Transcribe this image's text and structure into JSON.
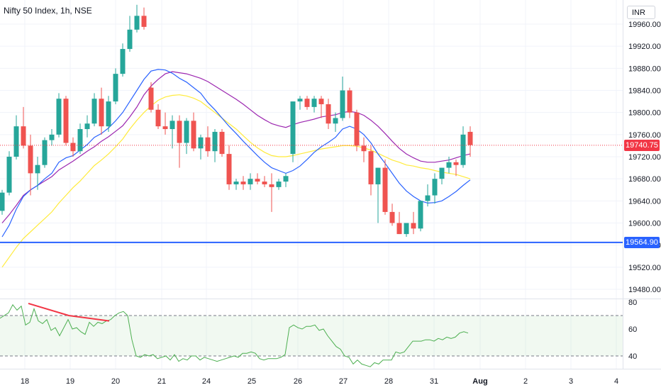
{
  "header": {
    "title": "Nifty 50 Index, 1h, NSE"
  },
  "currency": "INR",
  "price_labels": {
    "last": "19740.75",
    "line": "19564.90"
  },
  "colors": {
    "up": "#26a69a",
    "down": "#ef5350",
    "ema_blue": "#2962ff",
    "ema_purple": "#9c27b0",
    "ema_yellow": "#ffeb3b",
    "hline": "#2962ff",
    "rsi": "#4caf50",
    "rsi_div": "#f23645",
    "last": "#f23645"
  },
  "chart_data": [
    {
      "type": "candlestick",
      "title": "Nifty 50 Index, 1h, NSE",
      "y_ticks": [
        19480,
        19520,
        19560,
        19600,
        19640,
        19680,
        19720,
        19760,
        19800,
        19840,
        19880,
        19920,
        19960
      ],
      "y_tick_labels": [
        "19480.00",
        "19520.00",
        "19560.00",
        "19600.00",
        "19640.00",
        "19680.00",
        "19720.00",
        "19760.00",
        "19800.00",
        "19840.00",
        "19880.00",
        "19920.00",
        "19960.00"
      ],
      "ylim": [
        19458,
        19992
      ],
      "x_labels": [
        "18",
        "19",
        "20",
        "21",
        "24",
        "25",
        "26",
        "27",
        "28",
        "31",
        "Aug",
        "2",
        "3",
        "4"
      ],
      "horizontal_line": 19564.9,
      "last_price": 19740.75,
      "candles": [
        [
          19622,
          19660,
          19615,
          19655
        ],
        [
          19655,
          19730,
          19650,
          19720
        ],
        [
          19720,
          19795,
          19715,
          19775
        ],
        [
          19775,
          19810,
          19735,
          19740
        ],
        [
          19740,
          19760,
          19650,
          19690
        ],
        [
          19690,
          19720,
          19660,
          19705
        ],
        [
          19705,
          19755,
          19700,
          19750
        ],
        [
          19750,
          19770,
          19740,
          19760
        ],
        [
          19760,
          19835,
          19755,
          19825
        ],
        [
          19825,
          19830,
          19740,
          19745
        ],
        [
          19745,
          19755,
          19720,
          19730
        ],
        [
          19730,
          19780,
          19725,
          19770
        ],
        [
          19770,
          19795,
          19755,
          19780
        ],
        [
          19780,
          19835,
          19775,
          19825
        ],
        [
          19825,
          19845,
          19760,
          19775
        ],
        [
          19775,
          19830,
          19765,
          19820
        ],
        [
          19820,
          19880,
          19815,
          19870
        ],
        [
          19870,
          19925,
          19865,
          19915
        ],
        [
          19915,
          19975,
          19910,
          19950
        ],
        [
          19950,
          19995,
          19945,
          19975
        ],
        [
          19975,
          19990,
          19950,
          19955
        ],
        [
          19845,
          19855,
          19800,
          19805
        ],
        [
          19805,
          19815,
          19770,
          19775
        ],
        [
          19775,
          19800,
          19760,
          19770
        ],
        [
          19770,
          19795,
          19735,
          19785
        ],
        [
          19785,
          19795,
          19700,
          19745
        ],
        [
          19745,
          19790,
          19725,
          19785
        ],
        [
          19785,
          19800,
          19730,
          19735
        ],
        [
          19735,
          19760,
          19715,
          19755
        ],
        [
          19755,
          19775,
          19720,
          19730
        ],
        [
          19730,
          19770,
          19710,
          19765
        ],
        [
          19765,
          19770,
          19720,
          19725
        ],
        [
          19725,
          19740,
          19660,
          19670
        ],
        [
          19670,
          19680,
          19660,
          19675
        ],
        [
          19675,
          19685,
          19660,
          19670
        ],
        [
          19670,
          19690,
          19660,
          19680
        ],
        [
          19680,
          19690,
          19670,
          19675
        ],
        [
          19675,
          19685,
          19665,
          19670
        ],
        [
          19670,
          19690,
          19620,
          19665
        ],
        [
          19665,
          19680,
          19660,
          19675
        ],
        [
          19675,
          19690,
          19665,
          19685
        ],
        [
          19725,
          19820,
          19710,
          19820
        ],
        [
          19820,
          19830,
          19805,
          19825
        ],
        [
          19825,
          19830,
          19805,
          19810
        ],
        [
          19810,
          19830,
          19800,
          19825
        ],
        [
          19825,
          19830,
          19790,
          19815
        ],
        [
          19815,
          19825,
          19770,
          19780
        ],
        [
          19780,
          19800,
          19765,
          19790
        ],
        [
          19790,
          19865,
          19785,
          19840
        ],
        [
          19840,
          19845,
          19790,
          19800
        ],
        [
          19800,
          19805,
          19730,
          19740
        ],
        [
          19740,
          19755,
          19710,
          19730
        ],
        [
          19730,
          19740,
          19650,
          19670
        ],
        [
          19670,
          19700,
          19600,
          19700
        ],
        [
          19700,
          19715,
          19615,
          19620
        ],
        [
          19620,
          19635,
          19595,
          19600
        ],
        [
          19600,
          19620,
          19580,
          19580
        ],
        [
          19580,
          19600,
          19575,
          19600
        ],
        [
          19600,
          19620,
          19580,
          19590
        ],
        [
          19590,
          19640,
          19585,
          19640
        ],
        [
          19640,
          19670,
          19630,
          19650
        ],
        [
          19650,
          19690,
          19635,
          19680
        ],
        [
          19680,
          19700,
          19670,
          19700
        ],
        [
          19700,
          19720,
          19690,
          19710
        ],
        [
          19710,
          19715,
          19685,
          19705
        ],
        [
          19705,
          19775,
          19700,
          19760
        ],
        [
          19765,
          19775,
          19720,
          19741
        ]
      ],
      "ema_blue": [
        19575,
        19596,
        19625,
        19648,
        19660,
        19668,
        19680,
        19690,
        19710,
        19718,
        19722,
        19732,
        19742,
        19755,
        19762,
        19772,
        19785,
        19800,
        19820,
        19840,
        19860,
        19875,
        19878,
        19877,
        19871,
        19862,
        19855,
        19845,
        19835,
        19818,
        19805,
        19790,
        19775,
        19762,
        19748,
        19735,
        19722,
        19710,
        19700,
        19695,
        19690,
        19695,
        19703,
        19715,
        19728,
        19738,
        19746,
        19755,
        19770,
        19775,
        19770,
        19760,
        19745,
        19725,
        19708,
        19690,
        19672,
        19658,
        19648,
        19640,
        19636,
        19637,
        19640,
        19648,
        19657,
        19668,
        19678
      ],
      "ema_purple": [
        19600,
        19615,
        19632,
        19650,
        19660,
        19668,
        19676,
        19684,
        19696,
        19704,
        19712,
        19721,
        19730,
        19738,
        19748,
        19756,
        19766,
        19776,
        19792,
        19810,
        19832,
        19848,
        19860,
        19870,
        19874,
        19872,
        19870,
        19866,
        19862,
        19856,
        19848,
        19840,
        19832,
        19824,
        19815,
        19805,
        19795,
        19787,
        19780,
        19776,
        19773,
        19778,
        19782,
        19785,
        19788,
        19792,
        19794,
        19796,
        19800,
        19802,
        19800,
        19795,
        19786,
        19775,
        19762,
        19748,
        19735,
        19725,
        19718,
        19712,
        19710,
        19710,
        19712,
        19714,
        19718,
        19722,
        19725
      ],
      "ema_yellow": [
        19520,
        19538,
        19556,
        19572,
        19584,
        19596,
        19608,
        19620,
        19636,
        19650,
        19664,
        19676,
        19690,
        19704,
        19714,
        19725,
        19738,
        19752,
        19770,
        19786,
        19800,
        19812,
        19822,
        19828,
        19831,
        19832,
        19830,
        19826,
        19820,
        19810,
        19800,
        19790,
        19780,
        19770,
        19758,
        19746,
        19736,
        19728,
        19722,
        19720,
        19720,
        19722,
        19725,
        19728,
        19731,
        19734,
        19736,
        19738,
        19740,
        19740,
        19739,
        19736,
        19732,
        19726,
        19720,
        19714,
        19710,
        19705,
        19703,
        19700,
        19698,
        19695,
        19692,
        19690,
        19688,
        19684,
        19680
      ]
    },
    {
      "type": "line",
      "title": "",
      "y_ticks": [
        40,
        60,
        80
      ],
      "y_tick_labels": [
        "40",
        "60",
        "80"
      ],
      "ylim": [
        28,
        82
      ],
      "bands": [
        40,
        70
      ],
      "rsi": [
        68,
        70,
        72,
        78,
        74,
        77,
        63,
        65,
        75,
        66,
        64,
        67,
        59,
        61,
        55,
        61,
        67,
        60,
        61,
        58,
        56,
        65,
        62,
        65,
        64,
        66,
        67,
        70,
        72,
        73,
        70,
        52,
        40,
        39,
        41,
        40,
        41,
        38,
        39,
        40,
        37,
        41,
        36,
        38,
        37,
        40,
        40,
        37,
        39,
        38,
        37,
        36,
        37,
        38,
        39,
        40,
        39,
        42,
        42,
        43,
        42,
        38,
        37,
        38,
        38,
        38,
        39,
        41,
        61,
        63,
        61,
        60,
        62,
        62,
        63,
        59,
        60,
        55,
        51,
        47,
        45,
        40,
        39,
        34,
        37,
        34,
        33,
        32,
        35,
        34,
        37,
        37,
        37,
        43,
        42,
        43,
        47,
        51,
        51,
        51,
        52,
        52,
        51,
        53,
        52,
        54,
        53,
        54,
        57,
        58,
        57
      ],
      "divergence": [
        [
          40,
          79
        ],
        [
          97,
          70
        ],
        [
          154,
          66
        ]
      ]
    }
  ]
}
